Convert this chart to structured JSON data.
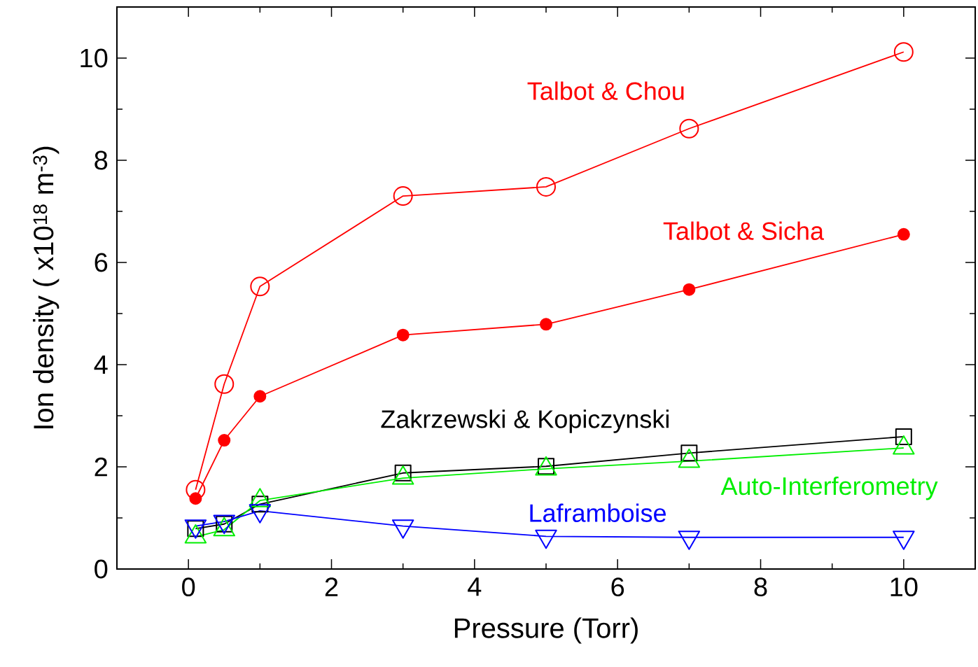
{
  "chart_data": {
    "type": "line",
    "xlabel": "Pressure (Torr)",
    "ylabel": "Ion density ( x10$^{18}$ m$^{-3}$)",
    "x": [
      0.1,
      0.5,
      1,
      3,
      5,
      7,
      10
    ],
    "series": [
      {
        "name": "Talbot & Chou",
        "color": "#ff0000",
        "marker": "circle",
        "values": [
          1.55,
          3.62,
          5.53,
          7.3,
          7.48,
          8.62,
          10.12
        ]
      },
      {
        "name": "Talbot & Sicha",
        "color": "#ff0000",
        "marker": "filled circle",
        "values": [
          1.38,
          2.52,
          3.38,
          4.58,
          4.79,
          5.47,
          6.55
        ]
      },
      {
        "name": "Zakrzewski & Kopiczynski",
        "color": "#000000",
        "marker": "square",
        "values": [
          0.79,
          0.88,
          1.27,
          1.88,
          2.01,
          2.27,
          2.59
        ]
      },
      {
        "name": "Auto-Interferometry",
        "color": "#00ee00",
        "marker": "triangle",
        "values": [
          0.63,
          0.77,
          1.34,
          1.78,
          1.96,
          2.11,
          2.37
        ]
      },
      {
        "name": "Laframboise",
        "color": "#0000ff",
        "marker": "triangle down",
        "values": [
          0.84,
          0.93,
          1.14,
          0.84,
          0.64,
          0.62,
          0.62
        ]
      }
    ],
    "xlim": [
      -1,
      11
    ],
    "ylim": [
      0,
      11
    ],
    "xticks": [
      0,
      2,
      4,
      6,
      8,
      10
    ],
    "yticks": [
      0,
      2,
      4,
      6,
      8,
      10
    ],
    "line_style": "solid"
  }
}
